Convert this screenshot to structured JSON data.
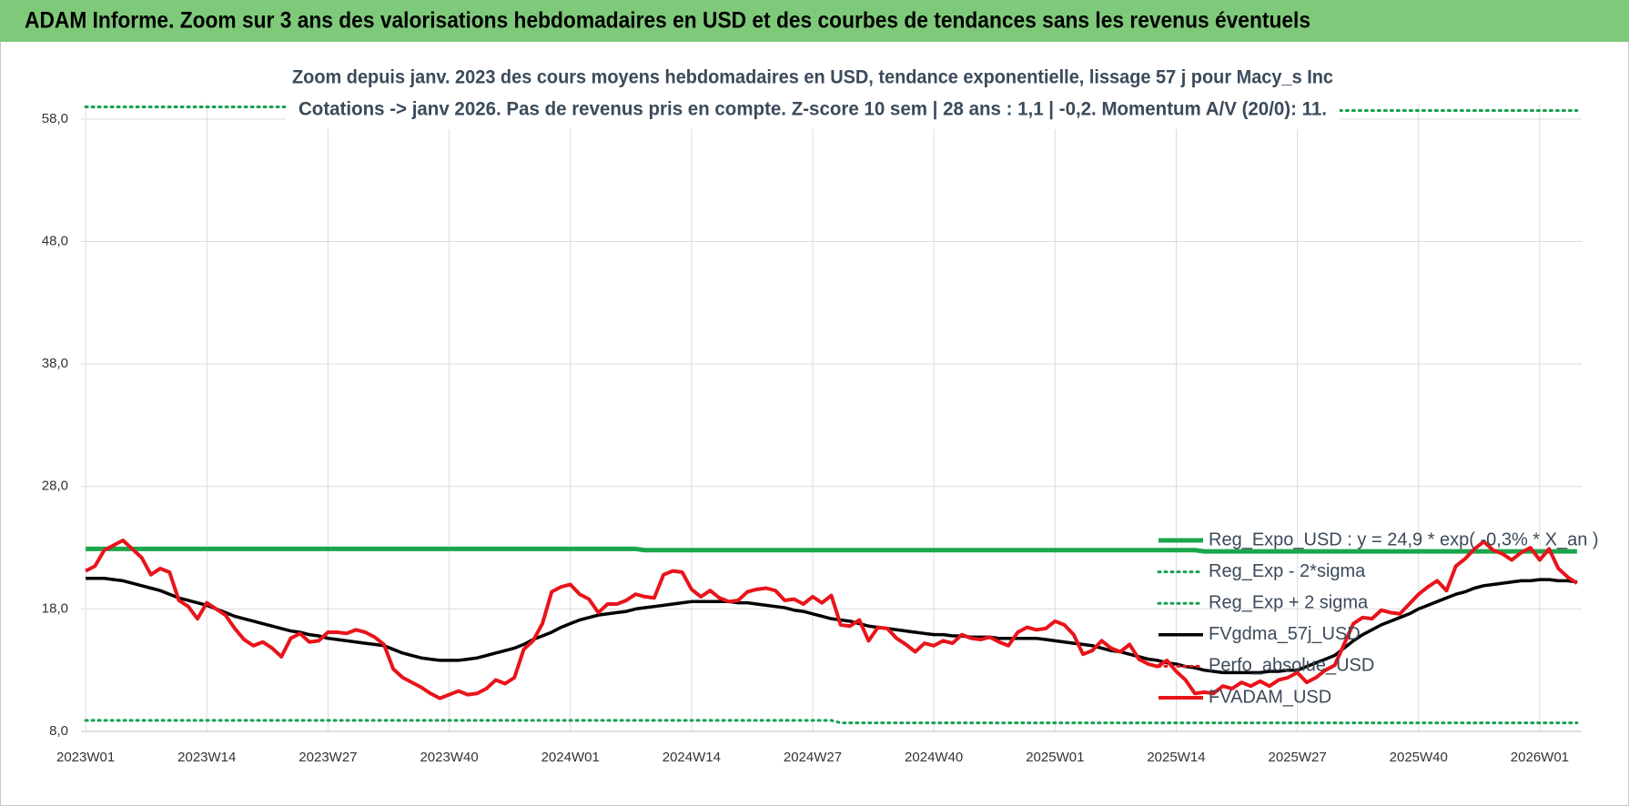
{
  "chart_data": {
    "type": "line",
    "title": "ADAM Informe. Zoom sur 3 ans des valorisations hebdomadaires en USD et des courbes de tendances sans les revenus éventuels",
    "subtitle": [
      "Zoom depuis janv. 2023 des cours moyens hebdomadaires en USD, tendance exponentielle, lissage 57 j pour Macy_s Inc",
      "Cotations -> janv 2026. Pas de revenus pris en compte. Z-score 10 sem | 28 ans : 1,1 | -0,2. Momentum A/V (20/0): 11."
    ],
    "categories": [
      "2023W01",
      null,
      null,
      null,
      null,
      null,
      null,
      null,
      null,
      null,
      null,
      null,
      null,
      "2023W14",
      null,
      null,
      null,
      null,
      null,
      null,
      null,
      null,
      null,
      null,
      null,
      null,
      "2023W27",
      null,
      null,
      null,
      null,
      null,
      null,
      null,
      null,
      null,
      null,
      null,
      null,
      "2023W40",
      null,
      null,
      null,
      null,
      null,
      null,
      null,
      null,
      null,
      null,
      null,
      null,
      "2024W01",
      null,
      null,
      null,
      null,
      null,
      null,
      null,
      null,
      null,
      null,
      null,
      null,
      "2024W14",
      null,
      null,
      null,
      null,
      null,
      null,
      null,
      null,
      null,
      null,
      null,
      null,
      "2024W27",
      null,
      null,
      null,
      null,
      null,
      null,
      null,
      null,
      null,
      null,
      null,
      null,
      "2024W40",
      null,
      null,
      null,
      null,
      null,
      null,
      null,
      null,
      null,
      null,
      null,
      null,
      "2025W01",
      null,
      null,
      null,
      null,
      null,
      null,
      null,
      null,
      null,
      null,
      null,
      null,
      "2025W14",
      null,
      null,
      null,
      null,
      null,
      null,
      null,
      null,
      null,
      null,
      null,
      null,
      "2025W27",
      null,
      null,
      null,
      null,
      null,
      null,
      null,
      null,
      null,
      null,
      null,
      null,
      "2025W40",
      null,
      null,
      null,
      null,
      null,
      null,
      null,
      null,
      null,
      null,
      null,
      null,
      "2026W01",
      null,
      null,
      null,
      null
    ],
    "ylim": [
      8,
      60
    ],
    "yticks": [
      {
        "value": 8,
        "label": "8,0"
      },
      {
        "value": 18,
        "label": "18,0"
      },
      {
        "value": 28,
        "label": "28,0"
      },
      {
        "value": 38,
        "label": "38,0"
      },
      {
        "value": 48,
        "label": "48,0"
      },
      {
        "value": 58,
        "label": "58,0"
      }
    ],
    "grid": true,
    "legend": "lower right",
    "series": [
      {
        "name": "Reg_Expo_USD : y = 24,9 * exp( -0,3% * X_an )",
        "color": "#1aa64a",
        "style": "solid",
        "width": 5,
        "values": [
          22.9,
          22.9,
          22.9,
          22.9,
          22.9,
          22.9,
          22.9,
          22.9,
          22.9,
          22.9,
          22.9,
          22.9,
          22.9,
          22.9,
          22.9,
          22.9,
          22.9,
          22.9,
          22.9,
          22.9,
          22.9,
          22.9,
          22.9,
          22.9,
          22.9,
          22.9,
          22.9,
          22.9,
          22.9,
          22.9,
          22.9,
          22.9,
          22.9,
          22.9,
          22.9,
          22.9,
          22.9,
          22.9,
          22.9,
          22.9,
          22.9,
          22.9,
          22.9,
          22.9,
          22.9,
          22.9,
          22.9,
          22.9,
          22.9,
          22.9,
          22.9,
          22.9,
          22.9,
          22.9,
          22.9,
          22.9,
          22.9,
          22.9,
          22.9,
          22.9,
          22.8,
          22.8,
          22.8,
          22.8,
          22.8,
          22.8,
          22.8,
          22.8,
          22.8,
          22.8,
          22.8,
          22.8,
          22.8,
          22.8,
          22.8,
          22.8,
          22.8,
          22.8,
          22.8,
          22.8,
          22.8,
          22.8,
          22.8,
          22.8,
          22.8,
          22.8,
          22.8,
          22.8,
          22.8,
          22.8,
          22.8,
          22.8,
          22.8,
          22.8,
          22.8,
          22.8,
          22.8,
          22.8,
          22.8,
          22.8,
          22.8,
          22.8,
          22.8,
          22.8,
          22.8,
          22.8,
          22.8,
          22.8,
          22.8,
          22.8,
          22.8,
          22.8,
          22.8,
          22.8,
          22.8,
          22.8,
          22.8,
          22.8,
          22.8,
          22.8,
          22.7,
          22.7,
          22.7,
          22.7,
          22.7,
          22.7,
          22.7,
          22.7,
          22.7,
          22.7,
          22.7,
          22.7,
          22.7,
          22.7,
          22.7,
          22.7,
          22.7,
          22.7,
          22.7,
          22.7,
          22.7,
          22.7,
          22.7,
          22.7,
          22.7,
          22.7,
          22.7,
          22.7,
          22.7,
          22.7,
          22.7,
          22.7,
          22.7,
          22.7,
          22.7,
          22.7,
          22.7,
          22.7,
          22.7,
          22.7,
          22.7
        ]
      },
      {
        "name": "Reg_Exp - 2*sigma",
        "color": "#14a050",
        "style": "dotted",
        "width": 3,
        "values": [
          8.9,
          8.9,
          8.9,
          8.9,
          8.9,
          8.9,
          8.9,
          8.9,
          8.9,
          8.9,
          8.9,
          8.9,
          8.9,
          8.9,
          8.9,
          8.9,
          8.9,
          8.9,
          8.9,
          8.9,
          8.9,
          8.9,
          8.9,
          8.9,
          8.9,
          8.9,
          8.9,
          8.9,
          8.9,
          8.9,
          8.9,
          8.9,
          8.9,
          8.9,
          8.9,
          8.9,
          8.9,
          8.9,
          8.9,
          8.9,
          8.9,
          8.9,
          8.9,
          8.9,
          8.9,
          8.9,
          8.9,
          8.9,
          8.9,
          8.9,
          8.9,
          8.9,
          8.9,
          8.9,
          8.9,
          8.9,
          8.9,
          8.9,
          8.9,
          8.9,
          8.9,
          8.9,
          8.9,
          8.9,
          8.9,
          8.9,
          8.9,
          8.9,
          8.9,
          8.9,
          8.9,
          8.9,
          8.9,
          8.9,
          8.9,
          8.9,
          8.9,
          8.9,
          8.9,
          8.9,
          8.9,
          8.7,
          8.7,
          8.7,
          8.7,
          8.7,
          8.7,
          8.7,
          8.7,
          8.7,
          8.7,
          8.7,
          8.7,
          8.7,
          8.7,
          8.7,
          8.7,
          8.7,
          8.7,
          8.7,
          8.7,
          8.7,
          8.7,
          8.7,
          8.7,
          8.7,
          8.7,
          8.7,
          8.7,
          8.7,
          8.7,
          8.7,
          8.7,
          8.7,
          8.7,
          8.7,
          8.7,
          8.7,
          8.7,
          8.7,
          8.7,
          8.7,
          8.7,
          8.7,
          8.7,
          8.7,
          8.7,
          8.7,
          8.7,
          8.7,
          8.7,
          8.7,
          8.7,
          8.7,
          8.7,
          8.7,
          8.7,
          8.7,
          8.7,
          8.7,
          8.7,
          8.7,
          8.7,
          8.7,
          8.7,
          8.7,
          8.7,
          8.7,
          8.7,
          8.7,
          8.7,
          8.7,
          8.7,
          8.7,
          8.7,
          8.7,
          8.7,
          8.7,
          8.7,
          8.7,
          8.7
        ]
      },
      {
        "name": "Reg_Exp + 2 sigma",
        "color": "#14a050",
        "style": "dotted",
        "width": 3,
        "values": [
          59.0,
          59.0,
          59.0,
          59.0,
          59.0,
          59.0,
          59.0,
          59.0,
          59.0,
          59.0,
          59.0,
          59.0,
          59.0,
          59.0,
          59.0,
          59.0,
          59.0,
          59.0,
          59.0,
          59.0,
          59.0,
          59.0,
          59.0,
          59.0,
          59.0,
          59.0,
          59.0,
          59.0,
          59.0,
          59.0,
          59.0,
          59.0,
          59.0,
          59.0,
          59.0,
          59.0,
          59.0,
          59.0,
          59.0,
          59.0,
          59.0,
          59.0,
          59.0,
          59.0,
          59.0,
          59.0,
          59.0,
          59.0,
          59.0,
          59.0,
          59.0,
          59.0,
          59.0,
          59.0,
          59.0,
          59.0,
          59.0,
          59.0,
          59.0,
          59.0,
          59.0,
          59.0,
          59.0,
          59.0,
          59.0,
          59.0,
          59.0,
          59.0,
          59.0,
          59.0,
          59.0,
          59.0,
          59.0,
          59.0,
          59.0,
          59.0,
          59.0,
          59.0,
          59.0,
          59.0,
          59.0,
          58.7,
          58.7,
          58.7,
          58.7,
          58.7,
          58.7,
          58.7,
          58.7,
          58.7,
          58.7,
          58.7,
          58.7,
          58.7,
          58.7,
          58.7,
          58.7,
          58.7,
          58.7,
          58.7,
          58.7,
          58.7,
          58.7,
          58.7,
          58.7,
          58.7,
          58.7,
          58.7,
          58.7,
          58.7,
          58.7,
          58.7,
          58.7,
          58.7,
          58.7,
          58.7,
          58.7,
          58.7,
          58.7,
          58.7,
          58.7,
          58.7,
          58.7,
          58.7,
          58.7,
          58.7,
          58.7,
          58.7,
          58.7,
          58.7,
          58.7,
          58.7,
          58.7,
          58.7,
          58.7,
          58.7,
          58.7,
          58.7,
          58.7,
          58.7,
          58.7,
          58.7,
          58.7,
          58.7,
          58.7,
          58.7,
          58.7,
          58.7,
          58.7,
          58.7,
          58.7,
          58.7,
          58.7,
          58.7,
          58.7,
          58.7,
          58.7,
          58.7,
          58.7,
          58.7,
          58.7
        ]
      },
      {
        "name": "FVgdma_57j_USD",
        "color": "#000000",
        "style": "solid",
        "width": 3.5,
        "values": [
          20.5,
          20.5,
          20.5,
          20.4,
          20.3,
          20.1,
          19.9,
          19.7,
          19.5,
          19.2,
          18.9,
          18.7,
          18.5,
          18.3,
          18.0,
          17.7,
          17.4,
          17.2,
          17.0,
          16.8,
          16.6,
          16.4,
          16.2,
          16.1,
          15.9,
          15.8,
          15.6,
          15.5,
          15.4,
          15.3,
          15.2,
          15.1,
          15.0,
          14.7,
          14.4,
          14.2,
          14.0,
          13.9,
          13.8,
          13.8,
          13.8,
          13.9,
          14.0,
          14.2,
          14.4,
          14.6,
          14.8,
          15.1,
          15.5,
          15.8,
          16.1,
          16.5,
          16.8,
          17.1,
          17.3,
          17.5,
          17.6,
          17.7,
          17.8,
          18.0,
          18.1,
          18.2,
          18.3,
          18.4,
          18.5,
          18.6,
          18.6,
          18.6,
          18.6,
          18.6,
          18.5,
          18.5,
          18.4,
          18.3,
          18.2,
          18.1,
          17.9,
          17.8,
          17.6,
          17.4,
          17.2,
          17.1,
          17.0,
          16.8,
          16.6,
          16.5,
          16.4,
          16.3,
          16.2,
          16.1,
          16.0,
          15.9,
          15.9,
          15.8,
          15.8,
          15.7,
          15.7,
          15.7,
          15.6,
          15.6,
          15.6,
          15.6,
          15.6,
          15.5,
          15.4,
          15.3,
          15.2,
          15.1,
          15.0,
          14.8,
          14.6,
          14.5,
          14.3,
          14.1,
          13.9,
          13.8,
          13.6,
          13.5,
          13.3,
          13.2,
          13.0,
          12.9,
          12.8,
          12.8,
          12.8,
          12.8,
          12.8,
          12.9,
          12.9,
          13.0,
          13.0,
          13.3,
          13.6,
          13.9,
          14.2,
          14.8,
          15.4,
          15.9,
          16.3,
          16.7,
          17.0,
          17.3,
          17.6,
          18.0,
          18.3,
          18.6,
          18.9,
          19.2,
          19.4,
          19.7,
          19.9,
          20.0,
          20.1,
          20.2,
          20.3,
          20.3,
          20.4,
          20.4,
          20.3,
          20.3,
          20.2
        ]
      },
      {
        "name": "Perfo_absolue_USD",
        "color": "#e8141b",
        "style": "dotted",
        "width": 3,
        "values": [
          null,
          null,
          null,
          null,
          null,
          null,
          null,
          null,
          null,
          null,
          null,
          null,
          null,
          null,
          null,
          null,
          null,
          null,
          null,
          null,
          null,
          null,
          null,
          null,
          null,
          null,
          null,
          null,
          null,
          null,
          null,
          null,
          null,
          null,
          null,
          null,
          null,
          null,
          null,
          null,
          null,
          null,
          null,
          null,
          null,
          null,
          null,
          null,
          null,
          null,
          null,
          null,
          null,
          null,
          null,
          null,
          null,
          null,
          null,
          null,
          null,
          null,
          null,
          null,
          null,
          null,
          null,
          null,
          null,
          null,
          null,
          null,
          null,
          null,
          null,
          null,
          null,
          null,
          null,
          null,
          null,
          null,
          null,
          null,
          null,
          null,
          null,
          null,
          null,
          null,
          null,
          null,
          null,
          null,
          null,
          null,
          null,
          null,
          null,
          null,
          null,
          null,
          null,
          null,
          null,
          null,
          null,
          null,
          null,
          null,
          null,
          null,
          null,
          null,
          null,
          null,
          null,
          null,
          null,
          null,
          null,
          null,
          null,
          null,
          null,
          null,
          null,
          null,
          null,
          null,
          null,
          null,
          null,
          null,
          null,
          null,
          null,
          null,
          null,
          null,
          null,
          null,
          null,
          null,
          null,
          null,
          null,
          null,
          null,
          null,
          null,
          null,
          null,
          null,
          null,
          null,
          null,
          null,
          null,
          null,
          null
        ]
      },
      {
        "name": "FVADAM_USD",
        "color": "#e8141b",
        "style": "solid",
        "width": 4,
        "values": [
          21.1,
          21.5,
          22.8,
          23.2,
          23.6,
          22.9,
          22.2,
          20.8,
          21.3,
          21,
          18.7,
          18.2,
          17.2,
          18.5,
          18,
          17.5,
          16.4,
          15.5,
          15,
          15.3,
          14.8,
          14.1,
          15.6,
          16,
          15.3,
          15.4,
          16.1,
          16.1,
          16,
          16.3,
          16.1,
          15.7,
          15.1,
          13.1,
          12.4,
          12,
          11.6,
          11.1,
          10.7,
          11,
          11.3,
          11,
          11.1,
          11.5,
          12.2,
          11.9,
          12.4,
          14.7,
          15.4,
          16.8,
          19.4,
          19.8,
          20,
          19.2,
          18.8,
          17.7,
          18.4,
          18.4,
          18.7,
          19.2,
          19,
          18.9,
          20.8,
          21.1,
          21,
          19.6,
          19,
          19.5,
          18.9,
          18.6,
          18.7,
          19.4,
          19.6,
          19.7,
          19.5,
          18.7,
          18.8,
          18.4,
          19,
          18.5,
          19.1,
          16.7,
          16.6,
          17.1,
          15.4,
          16.5,
          16.4,
          15.6,
          15.1,
          14.5,
          15.2,
          15,
          15.4,
          15.2,
          15.9,
          15.6,
          15.5,
          15.7,
          15.3,
          15,
          16.1,
          16.5,
          16.3,
          16.4,
          17,
          16.7,
          15.9,
          14.3,
          14.6,
          15.4,
          14.8,
          14.5,
          15.1,
          13.9,
          13.5,
          13.3,
          13.8,
          12.9,
          12.2,
          11.1,
          11.2,
          11.1,
          11.7,
          11.5,
          12,
          11.7,
          12.1,
          11.7,
          12.2,
          12.4,
          12.8,
          12,
          12.4,
          13,
          13.4,
          15.1,
          16.8,
          17.3,
          17.2,
          17.9,
          17.7,
          17.6,
          18.4,
          19.2,
          19.8,
          20.3,
          19.5,
          21.5,
          22.1,
          22.9,
          23.5,
          22.8,
          22.5,
          22.0,
          22.6,
          23.0,
          22.0,
          22.9,
          21.3,
          20.6,
          20.1
        ]
      }
    ]
  }
}
